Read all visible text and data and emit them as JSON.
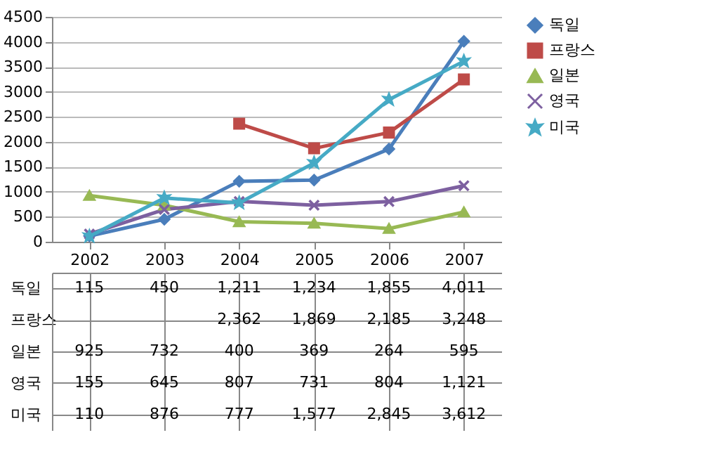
{
  "chart_data": {
    "type": "line",
    "categories": [
      "2002",
      "2003",
      "2004",
      "2005",
      "2006",
      "2007"
    ],
    "ylim": [
      0,
      4500
    ],
    "yticks": [
      0,
      500,
      1000,
      1500,
      2000,
      2500,
      3000,
      3500,
      4000,
      4500
    ],
    "grid": "y",
    "legend": "right",
    "series": [
      {
        "name": "독일",
        "color": "#4a7ebb",
        "marker": "diamond",
        "values": [
          115,
          450,
          1211,
          1234,
          1855,
          4011
        ],
        "value_labels": [
          "115",
          "450",
          "1,211",
          "1,234",
          "1,855",
          "4,011"
        ]
      },
      {
        "name": "프랑스",
        "color": "#be4b48",
        "marker": "square",
        "values": [
          null,
          null,
          2362,
          1869,
          2185,
          3248
        ],
        "value_labels": [
          null,
          null,
          "2,362",
          "1,869",
          "2,185",
          "3,248"
        ]
      },
      {
        "name": "일본",
        "color": "#98b954",
        "marker": "triangle",
        "values": [
          925,
          732,
          400,
          369,
          264,
          595
        ],
        "value_labels": [
          "925",
          "732",
          "400",
          "369",
          "264",
          "595"
        ]
      },
      {
        "name": "영국",
        "color": "#7d60a0",
        "marker": "cross",
        "values": [
          155,
          645,
          807,
          731,
          804,
          1121
        ],
        "value_labels": [
          "155",
          "645",
          "807",
          "731",
          "804",
          "1,121"
        ]
      },
      {
        "name": "미국",
        "color": "#46aac5",
        "marker": "star",
        "values": [
          110,
          876,
          777,
          1577,
          2845,
          3612
        ],
        "value_labels": [
          "110",
          "876",
          "777",
          "1,577",
          "2,845",
          "3,612"
        ]
      }
    ]
  }
}
